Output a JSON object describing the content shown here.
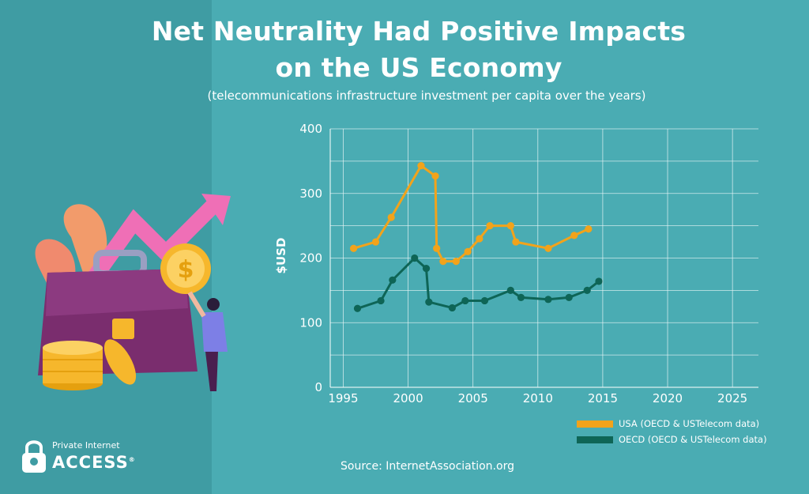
{
  "title_line_1": "Net Neutrality Had Positive Impacts",
  "title_line_2": "on the US Economy",
  "subtitle": "(telecommunications infrastructure investment per capita over the years)",
  "source": "Source: InternetAssociation.org",
  "brand": {
    "small": "Private Internet",
    "big": "ACCESS",
    "mark": "®"
  },
  "colors": {
    "background": "#4aacb3",
    "panel": "#3f9ca3",
    "usa": "#f2a31b",
    "oecd": "#0e6556",
    "grid": "#e6f4f5"
  },
  "chart_data": {
    "type": "line",
    "ylabel": "$USD",
    "xlabel": "",
    "xlim": [
      1994,
      2027
    ],
    "ylim": [
      0,
      400
    ],
    "x_ticks": [
      1995,
      2000,
      2005,
      2010,
      2015,
      2020,
      2025
    ],
    "y_ticks": [
      0,
      100,
      200,
      300,
      400
    ],
    "grid": true,
    "legend_position": "bottom-right",
    "series": [
      {
        "name": "USA (OECD & USTelecom data)",
        "color": "#f2a31b",
        "points": [
          [
            1995.8,
            215
          ],
          [
            1997.5,
            225
          ],
          [
            1998.7,
            263
          ],
          [
            2001.0,
            343
          ],
          [
            2002.1,
            327
          ],
          [
            2002.2,
            215
          ],
          [
            2002.7,
            195
          ],
          [
            2003.7,
            195
          ],
          [
            2004.6,
            210
          ],
          [
            2005.5,
            230
          ],
          [
            2006.3,
            250
          ],
          [
            2007.9,
            250
          ],
          [
            2008.3,
            225
          ],
          [
            2010.8,
            215
          ],
          [
            2012.8,
            235
          ],
          [
            2013.9,
            245
          ]
        ]
      },
      {
        "name": "OECD (OECD & USTelecom data)",
        "color": "#0e6556",
        "points": [
          [
            1996.1,
            122
          ],
          [
            1997.9,
            134
          ],
          [
            1998.8,
            166
          ],
          [
            2000.5,
            200
          ],
          [
            2001.4,
            184
          ],
          [
            2001.6,
            132
          ],
          [
            2003.4,
            123
          ],
          [
            2004.4,
            134
          ],
          [
            2005.9,
            134
          ],
          [
            2007.9,
            150
          ],
          [
            2008.7,
            139
          ],
          [
            2010.8,
            136
          ],
          [
            2012.4,
            139
          ],
          [
            2013.8,
            150
          ],
          [
            2014.7,
            164
          ]
        ]
      }
    ]
  }
}
